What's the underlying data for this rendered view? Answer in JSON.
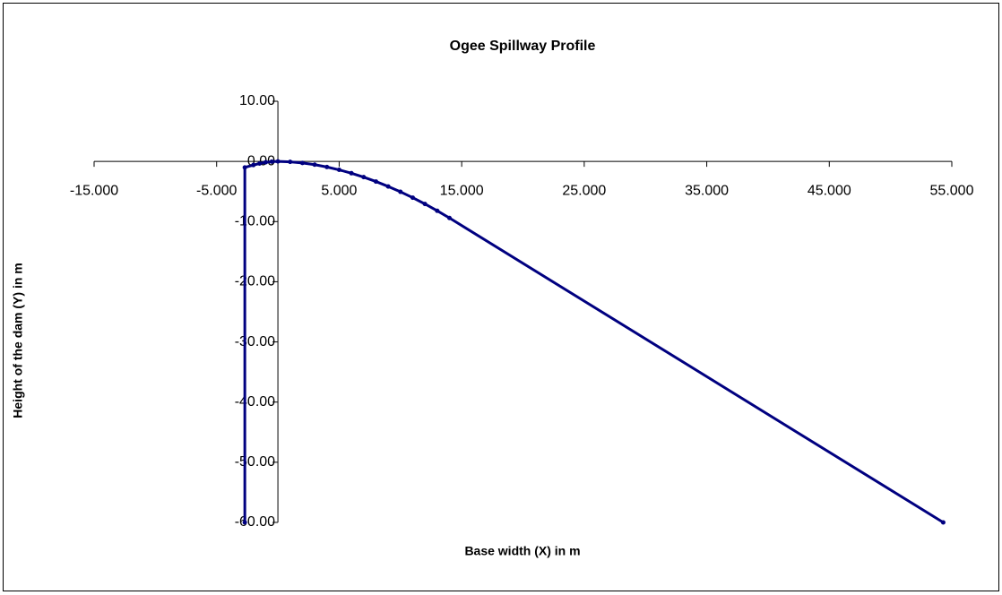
{
  "chart_data": {
    "type": "line",
    "title": "Ogee Spillway Profile",
    "x_label": "Base width (X) in m",
    "y_label": "Height of the dam (Y) in m",
    "x": [
      -2.7,
      -2.7,
      -2,
      -1.5,
      -1,
      -0.5,
      0,
      1,
      2,
      3,
      4,
      5,
      6,
      7,
      8,
      9,
      10,
      11,
      12,
      13,
      14,
      54.3
    ],
    "values": [
      -60,
      -1.0,
      -0.6,
      -0.35,
      -0.15,
      -0.04,
      0,
      -0.07,
      -0.26,
      -0.54,
      -0.93,
      -1.4,
      -1.96,
      -2.61,
      -3.34,
      -4.16,
      -5.05,
      -6.02,
      -7.07,
      -8.2,
      -9.4,
      -60
    ],
    "color": "#000080",
    "xlim": [
      -15,
      55
    ],
    "ylim": [
      -60,
      10
    ],
    "xticks": [
      {
        "value": -15,
        "label": "-15.000"
      },
      {
        "value": -5,
        "label": "-5.000"
      },
      {
        "value": 5,
        "label": "5.000"
      },
      {
        "value": 15,
        "label": "15.000"
      },
      {
        "value": 25,
        "label": "25.000"
      },
      {
        "value": 35,
        "label": "35.000"
      },
      {
        "value": 45,
        "label": "45.000"
      },
      {
        "value": 55,
        "label": "55.000"
      }
    ],
    "yticks": [
      {
        "value": 10,
        "label": "10.00"
      },
      {
        "value": 0,
        "label": "0.00"
      },
      {
        "value": -10,
        "label": "-10.00"
      },
      {
        "value": -20,
        "label": "-20.00"
      },
      {
        "value": -30,
        "label": "-30.00"
      },
      {
        "value": -40,
        "label": "-40.00"
      },
      {
        "value": -50,
        "label": "-50.00"
      },
      {
        "value": -60,
        "label": "-60.00"
      }
    ]
  }
}
